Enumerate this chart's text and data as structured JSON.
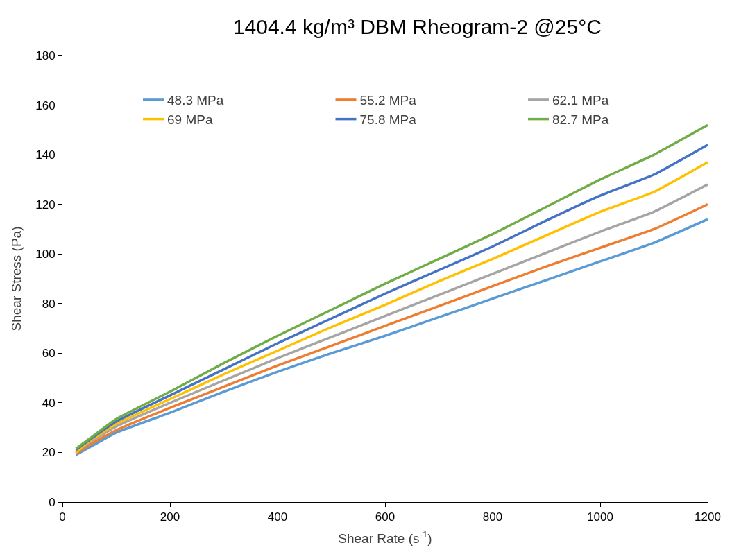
{
  "chart_data": {
    "type": "line",
    "title": "1404.4 kg/m³ DBM Rheogram-2 @25°C",
    "xlabel": "Shear Rate (s$^{-1}$)",
    "ylabel": "Shear Stress (Pa)",
    "x": [
      25,
      50,
      100,
      200,
      300,
      400,
      500,
      600,
      700,
      800,
      900,
      1000,
      1100,
      1200
    ],
    "series": [
      {
        "name": "48.3 MPa",
        "color": "#5b9bd5",
        "values": [
          19,
          22,
          28,
          36,
          44.5,
          52.5,
          60,
          67,
          74.5,
          82,
          89.5,
          97,
          104.5,
          114
        ]
      },
      {
        "name": "55.2 MPa",
        "color": "#ed7d31",
        "values": [
          19.5,
          23,
          29,
          38,
          46.5,
          55,
          63,
          71,
          79,
          87,
          95,
          102.5,
          110,
          120
        ]
      },
      {
        "name": "62.1 MPa",
        "color": "#a5a5a5",
        "values": [
          20,
          24,
          30.5,
          40,
          49,
          58,
          66.5,
          75,
          83.5,
          92,
          100.5,
          109,
          117,
          128
        ]
      },
      {
        "name": "69 MPa",
        "color": "#ffc000",
        "values": [
          20,
          24.5,
          31.5,
          41.5,
          51.5,
          61,
          70.5,
          79.5,
          89,
          98,
          107.5,
          117,
          125,
          137
        ]
      },
      {
        "name": "75.8 MPa",
        "color": "#4472c4",
        "values": [
          21,
          25,
          32.5,
          43,
          53.5,
          64,
          74,
          84,
          93.5,
          103,
          113.5,
          123.5,
          132,
          144
        ]
      },
      {
        "name": "82.7 MPa",
        "color": "#70ad47",
        "values": [
          21.5,
          25.5,
          33.5,
          44.5,
          56,
          67,
          77.5,
          88,
          98,
          108,
          119,
          130,
          140,
          152
        ]
      }
    ],
    "xlim": [
      0,
      1200
    ],
    "xticks": [
      0,
      200,
      400,
      600,
      800,
      1000,
      1200
    ],
    "ylim": [
      0,
      180
    ],
    "yticks": [
      0,
      20,
      40,
      60,
      80,
      100,
      120,
      140,
      160,
      180
    ],
    "legend": "top left",
    "marker": "none",
    "line_style": "solid"
  }
}
